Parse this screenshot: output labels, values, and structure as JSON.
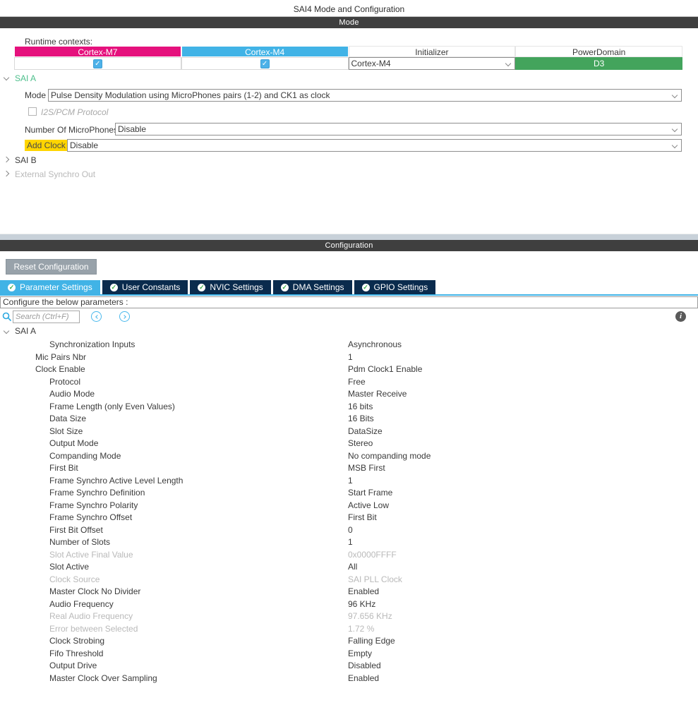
{
  "window": {
    "title": "SAI4 Mode and Configuration"
  },
  "icons": {
    "check_glyph": "✓",
    "info_glyph": "i"
  },
  "colors": {
    "accent_blue": "#41b3e6",
    "brand_pink": "#e5117d",
    "navy_tab": "#0a2b4d",
    "power_domain_green": "#43a45c",
    "check_green": "#3dae49",
    "section_bar_gray": "#3f3f3f",
    "highlight_yellow": "#ffd500",
    "sai_a_green": "#4cbe8b",
    "disabled_gray": "#b9b9b9"
  },
  "mode_section": {
    "header": "Mode",
    "runtime_contexts_label": "Runtime contexts:",
    "runtime_table": {
      "headers": [
        "Cortex-M7",
        "Cortex-M4",
        "Initializer",
        "PowerDomain"
      ],
      "cortex_m7_checked": true,
      "cortex_m4_checked": true,
      "initializer_value": "Cortex-M4",
      "power_domain_value": "D3"
    },
    "sai_a": {
      "label": "SAI A",
      "mode_label": "Mode",
      "mode_value": "Pulse Density Modulation using MicroPhones pairs (1-2) and CK1 as clock",
      "protocol_checkbox_label": "I2S/PCM Protocol",
      "microphones_label": "Number Of MicroPhones",
      "microphones_value": "Disable",
      "add_clock_label": "Add Clock",
      "add_clock_value": "Disable"
    },
    "sai_b_label": "SAI B",
    "external_synchro_label": "External Synchro Out"
  },
  "config_section": {
    "header": "Configuration",
    "reset_button_label": "Reset Configuration",
    "tabs": [
      {
        "label": "Parameter Settings",
        "active": true
      },
      {
        "label": "User Constants",
        "active": false
      },
      {
        "label": "NVIC Settings",
        "active": false
      },
      {
        "label": "DMA Settings",
        "active": false
      },
      {
        "label": "GPIO Settings",
        "active": false
      }
    ],
    "instruction": "Configure the below parameters :",
    "search": {
      "placeholder": "Search (Ctrl+F)"
    },
    "tree_label": "SAI A",
    "parameters": [
      {
        "name": "Synchronization Inputs",
        "value": "Asynchronous",
        "level": 2,
        "disabled": false
      },
      {
        "name": "Mic Pairs Nbr",
        "value": "1",
        "level": 1,
        "disabled": false
      },
      {
        "name": "Clock Enable",
        "value": "Pdm Clock1 Enable",
        "level": 1,
        "disabled": false
      },
      {
        "name": "Protocol",
        "value": "Free",
        "level": 2,
        "disabled": false
      },
      {
        "name": "Audio Mode",
        "value": "Master Receive",
        "level": 2,
        "disabled": false
      },
      {
        "name": "Frame Length (only Even Values)",
        "value": "16 bits",
        "level": 2,
        "disabled": false
      },
      {
        "name": "Data Size",
        "value": "16 Bits",
        "level": 2,
        "disabled": false
      },
      {
        "name": "Slot Size",
        "value": "DataSize",
        "level": 2,
        "disabled": false
      },
      {
        "name": "Output Mode",
        "value": "Stereo",
        "level": 2,
        "disabled": false
      },
      {
        "name": "Companding Mode",
        "value": "No companding mode",
        "level": 2,
        "disabled": false
      },
      {
        "name": "First Bit",
        "value": "MSB First",
        "level": 2,
        "disabled": false
      },
      {
        "name": "Frame Synchro Active Level Length",
        "value": "1",
        "level": 2,
        "disabled": false
      },
      {
        "name": "Frame Synchro Definition",
        "value": "Start Frame",
        "level": 2,
        "disabled": false
      },
      {
        "name": "Frame Synchro Polarity",
        "value": "Active Low",
        "level": 2,
        "disabled": false
      },
      {
        "name": "Frame Synchro Offset",
        "value": "First Bit",
        "level": 2,
        "disabled": false
      },
      {
        "name": "First Bit Offset",
        "value": "0",
        "level": 2,
        "disabled": false
      },
      {
        "name": "Number of Slots",
        "value": "1",
        "level": 2,
        "disabled": false
      },
      {
        "name": "Slot Active Final Value",
        "value": "0x0000FFFF",
        "level": 2,
        "disabled": true
      },
      {
        "name": "Slot Active",
        "value": "All",
        "level": 2,
        "disabled": false
      },
      {
        "name": "Clock Source",
        "value": "SAI PLL Clock",
        "level": 2,
        "disabled": true
      },
      {
        "name": "Master Clock No Divider",
        "value": "Enabled",
        "level": 2,
        "disabled": false
      },
      {
        "name": "Audio Frequency",
        "value": "96 KHz",
        "level": 2,
        "disabled": false
      },
      {
        "name": "Real Audio Frequency",
        "value": "97.656 KHz",
        "level": 2,
        "disabled": true
      },
      {
        "name": "Error between Selected",
        "value": "1.72 %",
        "level": 2,
        "disabled": true
      },
      {
        "name": "Clock Strobing",
        "value": "Falling Edge",
        "level": 2,
        "disabled": false
      },
      {
        "name": "Fifo Threshold",
        "value": "Empty",
        "level": 2,
        "disabled": false
      },
      {
        "name": "Output Drive",
        "value": "Disabled",
        "level": 2,
        "disabled": false
      },
      {
        "name": "Master Clock Over Sampling",
        "value": "Enabled",
        "level": 2,
        "disabled": false
      }
    ]
  }
}
